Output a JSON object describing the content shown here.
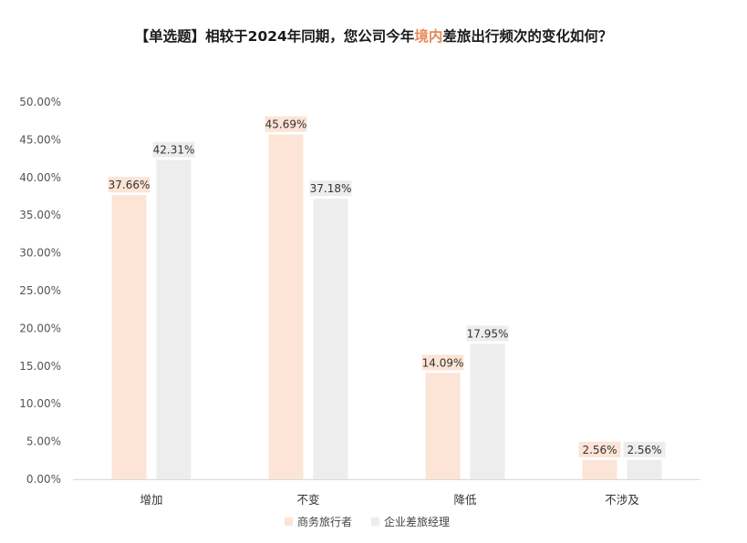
{
  "title": {
    "prefix": "【单选题】相较于2024年同期，您公司今年",
    "highlight": "境内",
    "suffix": "差旅出行频次的变化如何？"
  },
  "colors": {
    "series_1": "#fce4d6",
    "series_1_label_bg": "#fce4d6",
    "series_2": "#ededed",
    "series_2_label_bg": "#ededed",
    "highlight": "#e8885a",
    "axis": "#d9d9d9"
  },
  "chart_data": {
    "type": "bar",
    "title": "【单选题】相较于2024年同期，您公司今年境内差旅出行频次的变化如何？",
    "categories": [
      "增加",
      "不变",
      "降低",
      "不涉及"
    ],
    "series": [
      {
        "name": "商务旅行者",
        "values": [
          37.66,
          45.69,
          14.09,
          2.56
        ]
      },
      {
        "name": "企业差旅经理",
        "values": [
          42.31,
          37.18,
          17.95,
          2.56
        ]
      }
    ],
    "ylim": [
      0,
      50
    ],
    "yticks": [
      0,
      5,
      10,
      15,
      20,
      25,
      30,
      35,
      40,
      45,
      50
    ],
    "ytick_labels": [
      "0.00%",
      "5.00%",
      "10.00%",
      "15.00%",
      "20.00%",
      "25.00%",
      "30.00%",
      "35.00%",
      "40.00%",
      "45.00%",
      "50.00%"
    ],
    "data_labels": [
      [
        "37.66%",
        "45.69%",
        "14.09%",
        "2.56%"
      ],
      [
        "42.31%",
        "37.18%",
        "17.95%",
        "2.56%"
      ]
    ],
    "grid": false,
    "legend_position": "bottom-center"
  }
}
